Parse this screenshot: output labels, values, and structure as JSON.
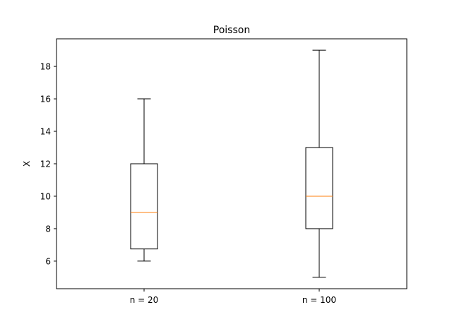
{
  "chart_data": {
    "type": "box",
    "title": "Poisson",
    "xlabel": "",
    "ylabel": "X",
    "ylim": [
      4.3,
      19.7
    ],
    "yticks": [
      6,
      8,
      10,
      12,
      14,
      16,
      18
    ],
    "categories": [
      "n = 20",
      "n = 100"
    ],
    "boxes": [
      {
        "whislo": 6,
        "q1": 6.75,
        "med": 9,
        "q3": 12,
        "whishi": 16
      },
      {
        "whislo": 5,
        "q1": 8,
        "med": 10,
        "q3": 13,
        "whishi": 19
      }
    ],
    "grid": false,
    "colors": {
      "box": "#000000",
      "median": "#ff7f0e"
    }
  }
}
